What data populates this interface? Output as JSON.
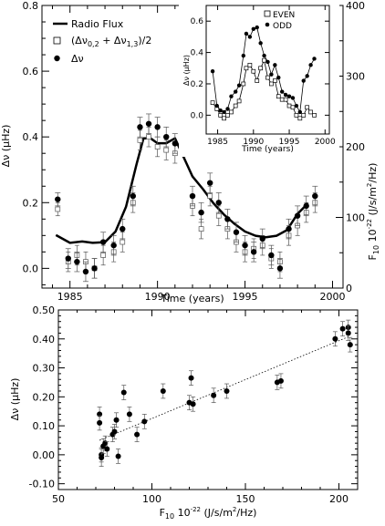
{
  "chart_data": [
    {
      "id": "top",
      "type": "line",
      "xlabel": "Time (years)",
      "ylabel": "Δν (μHz)",
      "y2label": "F10 10-22 (J/s/m2/Hz)",
      "xlim": [
        1983.4,
        2000.6
      ],
      "ylim": [
        -0.06,
        0.8
      ],
      "y2lim": [
        0,
        400
      ],
      "xticks": [
        "1985",
        "1990",
        "1995",
        "2000"
      ],
      "yticks": [
        "0.0",
        "0.2",
        "0.4",
        "0.6",
        "0.8"
      ],
      "y2ticks": [
        "0",
        "100",
        "200",
        "300",
        "400"
      ],
      "legend_position": "top-left",
      "legend": {
        "radio": "Radio Flux",
        "avg_text": "(Δν",
        "avg_sub1": "0,2",
        "avg_mid": " + Δν",
        "avg_sub2": "1,3",
        "avg_tail": ")/2",
        "dnu": "Δν"
      },
      "series": [
        {
          "name": "Radio Flux",
          "axis": "y2",
          "x": [
            1984.2,
            1985.0,
            1985.7,
            1986.3,
            1987.0,
            1987.6,
            1988.2,
            1988.8,
            1989.2,
            1989.6,
            1990.0,
            1990.5,
            1991.0,
            1991.5,
            1992.0,
            1992.6,
            1993.2,
            1993.8,
            1994.4,
            1995.0,
            1995.6,
            1996.2,
            1996.8,
            1997.4,
            1998.0,
            1998.6
          ],
          "y": [
            75,
            64,
            66,
            64,
            65,
            80,
            115,
            175,
            212,
            212,
            205,
            205,
            212,
            185,
            158,
            140,
            120,
            104,
            91,
            80,
            74,
            72,
            74,
            82,
            105,
            120
          ]
        },
        {
          "name": "(Δν0,2 + Δν1,3)/2",
          "axis": "y",
          "x": [
            1984.3,
            1984.9,
            1985.4,
            1985.9,
            1986.4,
            1986.9,
            1987.5,
            1988.0,
            1988.6,
            1989.0,
            1989.5,
            1990.0,
            1990.5,
            1991.0,
            1991.5,
            1992.0,
            1992.5,
            1993.0,
            1993.5,
            1994.0,
            1994.5,
            1995.0,
            1995.5,
            1996.0,
            1996.5,
            1997.0,
            1997.5,
            1998.0,
            1998.5,
            1999.0
          ],
          "y": [
            0.18,
            0.02,
            0.04,
            0.02,
            0.0,
            0.04,
            0.05,
            0.08,
            0.2,
            0.39,
            0.4,
            0.37,
            0.36,
            0.35,
            0.37,
            0.19,
            0.12,
            0.22,
            0.16,
            0.12,
            0.08,
            0.05,
            0.06,
            0.07,
            0.03,
            0.02,
            0.1,
            0.13,
            0.17,
            0.2
          ],
          "err": [
            0.02,
            0.03,
            0.03,
            0.03,
            0.03,
            0.03,
            0.03,
            0.03,
            0.03,
            0.03,
            0.03,
            0.03,
            0.03,
            0.03,
            0.03,
            0.03,
            0.03,
            0.03,
            0.03,
            0.03,
            0.03,
            0.03,
            0.03,
            0.03,
            0.03,
            0.03,
            0.03,
            0.03,
            0.03,
            0.03
          ]
        },
        {
          "name": "Δν",
          "axis": "y",
          "x": [
            1984.3,
            1984.9,
            1985.4,
            1985.9,
            1986.4,
            1986.9,
            1987.5,
            1988.0,
            1988.6,
            1989.0,
            1989.5,
            1990.0,
            1990.5,
            1991.0,
            1991.5,
            1992.0,
            1992.5,
            1993.0,
            1993.5,
            1994.0,
            1994.5,
            1995.0,
            1995.5,
            1996.0,
            1996.5,
            1997.0,
            1997.5,
            1998.0,
            1998.5,
            1999.0
          ],
          "y": [
            0.21,
            0.03,
            0.02,
            -0.01,
            0.0,
            0.08,
            0.07,
            0.12,
            0.22,
            0.43,
            0.44,
            0.43,
            0.4,
            0.38,
            0.42,
            0.22,
            0.17,
            0.26,
            0.2,
            0.15,
            0.11,
            0.07,
            0.05,
            0.09,
            0.04,
            0.0,
            0.12,
            0.16,
            0.19,
            0.22
          ],
          "err": [
            0.02,
            0.03,
            0.03,
            0.03,
            0.03,
            0.03,
            0.03,
            0.03,
            0.03,
            0.03,
            0.03,
            0.03,
            0.03,
            0.03,
            0.03,
            0.03,
            0.03,
            0.03,
            0.03,
            0.03,
            0.03,
            0.03,
            0.03,
            0.03,
            0.03,
            0.03,
            0.03,
            0.03,
            0.03,
            0.03
          ]
        }
      ]
    },
    {
      "id": "inset",
      "type": "line",
      "xlabel": "Time (years)",
      "ylabel": "Δν (μHz)",
      "xlim": [
        1983.4,
        2000.6
      ],
      "ylim": [
        -0.12,
        0.7
      ],
      "xticks": [
        "1985",
        "1990",
        "1995",
        "2000"
      ],
      "yticks": [
        "0.0",
        "0.2",
        "0.4",
        "0.6"
      ],
      "legend_position": "top-right",
      "series": [
        {
          "name": "EVEN",
          "x": [
            1984.3,
            1984.9,
            1985.4,
            1985.9,
            1986.4,
            1986.9,
            1987.5,
            1988.0,
            1988.6,
            1989.0,
            1989.5,
            1990.0,
            1990.5,
            1991.0,
            1991.5,
            1992.0,
            1992.5,
            1993.0,
            1993.5,
            1994.0,
            1994.5,
            1995.0,
            1995.5,
            1996.0,
            1996.5,
            1997.0,
            1997.5,
            1998.0,
            1998.5
          ],
          "y": [
            0.08,
            0.04,
            0.0,
            -0.02,
            0.0,
            0.02,
            0.06,
            0.09,
            0.2,
            0.3,
            0.32,
            0.28,
            0.22,
            0.3,
            0.35,
            0.24,
            0.2,
            0.22,
            0.12,
            0.1,
            0.1,
            0.06,
            0.05,
            0.0,
            -0.02,
            0.0,
            0.05,
            0.02,
            0.0
          ]
        },
        {
          "name": "ODD",
          "x": [
            1984.3,
            1984.9,
            1985.4,
            1985.9,
            1986.4,
            1986.9,
            1987.5,
            1988.0,
            1988.6,
            1989.0,
            1989.5,
            1990.0,
            1990.5,
            1991.0,
            1991.5,
            1992.0,
            1992.5,
            1993.0,
            1993.5,
            1994.0,
            1994.5,
            1995.0,
            1995.5,
            1996.0,
            1996.5,
            1997.0,
            1997.5,
            1998.0,
            1998.5
          ],
          "y": [
            0.28,
            0.06,
            0.03,
            0.02,
            0.04,
            0.12,
            0.15,
            0.19,
            0.38,
            0.52,
            0.5,
            0.55,
            0.56,
            0.46,
            0.38,
            0.34,
            0.26,
            0.32,
            0.24,
            0.15,
            0.13,
            0.12,
            0.11,
            0.06,
            0.02,
            0.22,
            0.25,
            0.32,
            0.36
          ]
        }
      ]
    },
    {
      "id": "scatter",
      "type": "scatter",
      "xlabel": "F10 10-22 (J/s/m2/Hz)",
      "ylabel": "Δν (μHz)",
      "xlim": [
        50,
        210
      ],
      "ylim": [
        -0.12,
        0.5
      ],
      "xticks": [
        "50",
        "100",
        "150",
        "200"
      ],
      "yticks": [
        "-0.10",
        "0.00",
        "0.10",
        "0.20",
        "0.30",
        "0.40",
        "0.50"
      ],
      "fit": {
        "x": [
          72,
          206
        ],
        "y": [
          0.05,
          0.41
        ]
      },
      "points": [
        {
          "x": 72,
          "y": 0.14,
          "err": 0.025
        },
        {
          "x": 72,
          "y": 0.11,
          "err": 0.025
        },
        {
          "x": 73,
          "y": 0.0,
          "err": 0.025
        },
        {
          "x": 73,
          "y": -0.01,
          "err": 0.03
        },
        {
          "x": 74,
          "y": 0.03,
          "err": 0.025
        },
        {
          "x": 75,
          "y": 0.04,
          "err": 0.025
        },
        {
          "x": 76,
          "y": 0.02,
          "err": 0.025
        },
        {
          "x": 79,
          "y": 0.07,
          "err": 0.025
        },
        {
          "x": 80,
          "y": 0.08,
          "err": 0.025
        },
        {
          "x": 81,
          "y": 0.12,
          "err": 0.025
        },
        {
          "x": 82,
          "y": -0.005,
          "err": 0.025
        },
        {
          "x": 85,
          "y": 0.215,
          "err": 0.025
        },
        {
          "x": 88,
          "y": 0.14,
          "err": 0.025
        },
        {
          "x": 92,
          "y": 0.07,
          "err": 0.025
        },
        {
          "x": 96,
          "y": 0.115,
          "err": 0.025
        },
        {
          "x": 106,
          "y": 0.22,
          "err": 0.025
        },
        {
          "x": 120,
          "y": 0.18,
          "err": 0.025
        },
        {
          "x": 121,
          "y": 0.265,
          "err": 0.025
        },
        {
          "x": 122,
          "y": 0.175,
          "err": 0.025
        },
        {
          "x": 133,
          "y": 0.205,
          "err": 0.025
        },
        {
          "x": 140,
          "y": 0.22,
          "err": 0.025
        },
        {
          "x": 167,
          "y": 0.25,
          "err": 0.025
        },
        {
          "x": 169,
          "y": 0.255,
          "err": 0.025
        },
        {
          "x": 198,
          "y": 0.4,
          "err": 0.025
        },
        {
          "x": 202,
          "y": 0.435,
          "err": 0.025
        },
        {
          "x": 205,
          "y": 0.44,
          "err": 0.025
        },
        {
          "x": 205,
          "y": 0.42,
          "err": 0.025
        },
        {
          "x": 206,
          "y": 0.38,
          "err": 0.025
        }
      ]
    }
  ]
}
